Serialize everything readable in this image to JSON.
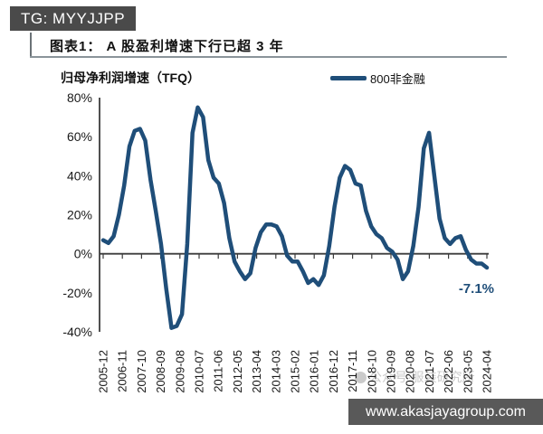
{
  "badge": {
    "text": "TG: MYYJJPP",
    "bg": "#4a4a4a",
    "fg": "#ffffff"
  },
  "figure": {
    "title": "图表1： A 股盈利增速下行已超 3 年",
    "subtitle": "归母净利润增速（TFQ）",
    "legend": {
      "label": "800非金融",
      "color": "#1F4E79"
    },
    "annotation": {
      "text": "-7.1%",
      "color": "#1F4E79"
    }
  },
  "watermark": {
    "text": "公众号·服装研究所"
  },
  "footer": {
    "url": "www.akasjayagroup.com",
    "bg": "#595959",
    "fg": "#ffffff"
  },
  "chart_data": {
    "type": "line",
    "title": "图表1： A 股盈利增速下行已超 3 年",
    "ylabel": "归母净利润增速（TFQ）",
    "series_name": "800非金融",
    "line_color": "#1F4E79",
    "grid": false,
    "legend_position": "top",
    "ylim": [
      -40,
      80
    ],
    "yticks": [
      "80%",
      "60%",
      "40%",
      "20%",
      "0%",
      "-20%",
      "-40%"
    ],
    "xtick_labels": [
      "2005-12",
      "2006-11",
      "2007-10",
      "2008-09",
      "2009-08",
      "2010-07",
      "2011-06",
      "2012-05",
      "2013-04",
      "2014-03",
      "2015-02",
      "2016-01",
      "2016-12",
      "2017-11",
      "2018-10",
      "2019-09",
      "2020-08",
      "2021-07",
      "2022-06",
      "2023-05",
      "2024-04"
    ],
    "x": [
      "2005-12",
      "2006-03",
      "2006-06",
      "2006-09",
      "2006-12",
      "2007-03",
      "2007-06",
      "2007-09",
      "2007-12",
      "2008-03",
      "2008-06",
      "2008-09",
      "2008-12",
      "2009-03",
      "2009-06",
      "2009-09",
      "2009-12",
      "2010-03",
      "2010-06",
      "2010-09",
      "2010-12",
      "2011-03",
      "2011-06",
      "2011-09",
      "2011-12",
      "2012-03",
      "2012-06",
      "2012-09",
      "2012-12",
      "2013-03",
      "2013-06",
      "2013-09",
      "2013-12",
      "2014-03",
      "2014-06",
      "2014-09",
      "2014-12",
      "2015-03",
      "2015-06",
      "2015-09",
      "2015-12",
      "2016-03",
      "2016-06",
      "2016-09",
      "2016-12",
      "2017-03",
      "2017-06",
      "2017-09",
      "2017-12",
      "2018-03",
      "2018-06",
      "2018-09",
      "2018-12",
      "2019-03",
      "2019-06",
      "2019-09",
      "2019-12",
      "2020-03",
      "2020-06",
      "2020-09",
      "2020-12",
      "2021-03",
      "2021-06",
      "2021-09",
      "2021-12",
      "2022-03",
      "2022-06",
      "2022-09",
      "2022-12",
      "2023-03",
      "2023-06",
      "2023-09",
      "2023-12",
      "2024-03"
    ],
    "values": [
      7,
      5.5,
      9,
      20,
      35,
      55,
      63,
      64,
      58,
      38,
      22,
      5,
      -18,
      -38,
      -37,
      -31,
      5,
      62,
      75,
      70,
      48,
      39,
      36,
      26,
      8,
      -4,
      -9,
      -13,
      -10,
      3,
      11,
      15,
      15,
      14,
      9,
      -1,
      -4,
      -4,
      -9,
      -15,
      -13,
      -16,
      -11,
      4,
      24,
      39,
      45,
      43,
      36,
      35,
      22,
      14,
      10,
      8,
      3,
      1,
      -3,
      -13,
      -9,
      4,
      24,
      54,
      62,
      40,
      18,
      8,
      5,
      8,
      9,
      2,
      -3,
      -5,
      -5,
      -7.1
    ],
    "last_value_label": "-7.1%"
  }
}
